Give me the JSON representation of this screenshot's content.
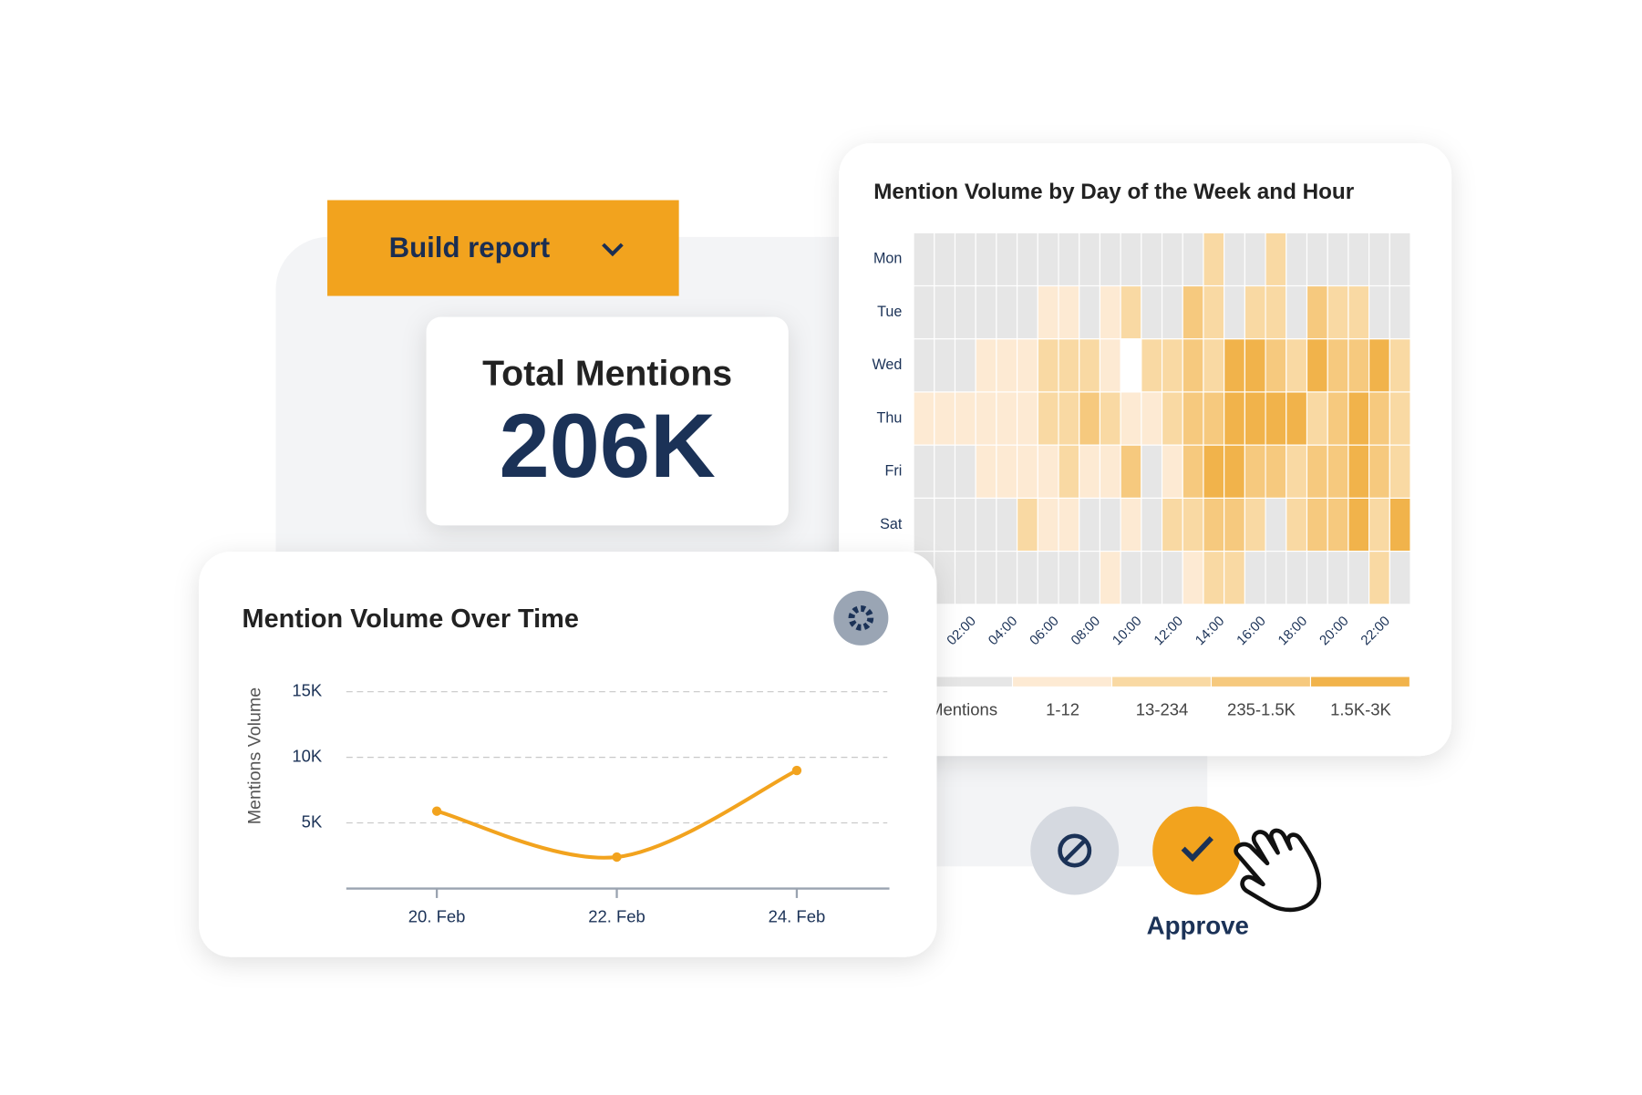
{
  "build_report": {
    "label": "Build report"
  },
  "total_mentions": {
    "title": "Total Mentions",
    "value": "206K"
  },
  "heatmap": {
    "title": "Mention Volume by Day of the Week and Hour",
    "rows": [
      "Mon",
      "Tue",
      "Wed",
      "Thu",
      "Fri",
      "Sat",
      null
    ],
    "columns": [
      null,
      null,
      "02:00",
      null,
      "04:00",
      null,
      "06:00",
      null,
      "08:00",
      null,
      "10:00",
      null,
      "12:00",
      null,
      "14:00",
      null,
      "16:00",
      null,
      "18:00",
      null,
      "20:00",
      null,
      "22:00",
      null
    ],
    "levels": [
      "Mentions",
      "1-12",
      "13-234",
      "235-1.5K",
      "1.5K-3K"
    ],
    "colors": [
      "#e6e6e6",
      "#fdead3",
      "#f9d9a3",
      "#f6c97e",
      "#f1b34b"
    ],
    "values": [
      [
        0,
        0,
        0,
        0,
        0,
        0,
        0,
        0,
        0,
        0,
        0,
        0,
        0,
        0,
        2,
        0,
        0,
        2,
        0,
        0,
        0,
        0,
        0,
        0
      ],
      [
        0,
        0,
        0,
        0,
        0,
        0,
        1,
        1,
        0,
        1,
        2,
        0,
        0,
        3,
        2,
        0,
        2,
        2,
        0,
        3,
        2,
        2,
        0,
        0
      ],
      [
        0,
        0,
        0,
        1,
        1,
        1,
        2,
        2,
        2,
        1,
        null,
        2,
        2,
        3,
        2,
        4,
        4,
        3,
        2,
        4,
        3,
        3,
        4,
        2
      ],
      [
        1,
        1,
        1,
        1,
        1,
        1,
        2,
        2,
        3,
        2,
        1,
        1,
        2,
        3,
        3,
        4,
        4,
        4,
        4,
        2,
        3,
        4,
        3,
        2
      ],
      [
        0,
        0,
        0,
        1,
        1,
        1,
        1,
        2,
        1,
        1,
        3,
        0,
        1,
        3,
        4,
        4,
        3,
        3,
        2,
        3,
        3,
        4,
        3,
        2
      ],
      [
        0,
        0,
        0,
        0,
        0,
        2,
        1,
        1,
        0,
        0,
        1,
        0,
        2,
        2,
        3,
        3,
        2,
        0,
        2,
        3,
        3,
        4,
        2,
        4
      ],
      [
        0,
        0,
        0,
        0,
        0,
        0,
        0,
        0,
        0,
        1,
        0,
        0,
        0,
        1,
        2,
        2,
        0,
        0,
        0,
        0,
        0,
        0,
        2,
        0
      ]
    ]
  },
  "line_chart": {
    "type": "line",
    "title": "Mention Volume Over Time",
    "y_label": "Mentions Volume",
    "categories": [
      "20. Feb",
      "22. Feb",
      "24. Feb"
    ],
    "values": [
      5900,
      2400,
      9000
    ],
    "color": "#f2a31e",
    "ylim": [
      0,
      15000
    ],
    "yticks": [
      {
        "value": 5000,
        "label": "5K"
      },
      {
        "value": 10000,
        "label": "10K"
      },
      {
        "value": 15000,
        "label": "15K"
      }
    ],
    "grid": true
  },
  "approve": {
    "label": "Approve"
  }
}
